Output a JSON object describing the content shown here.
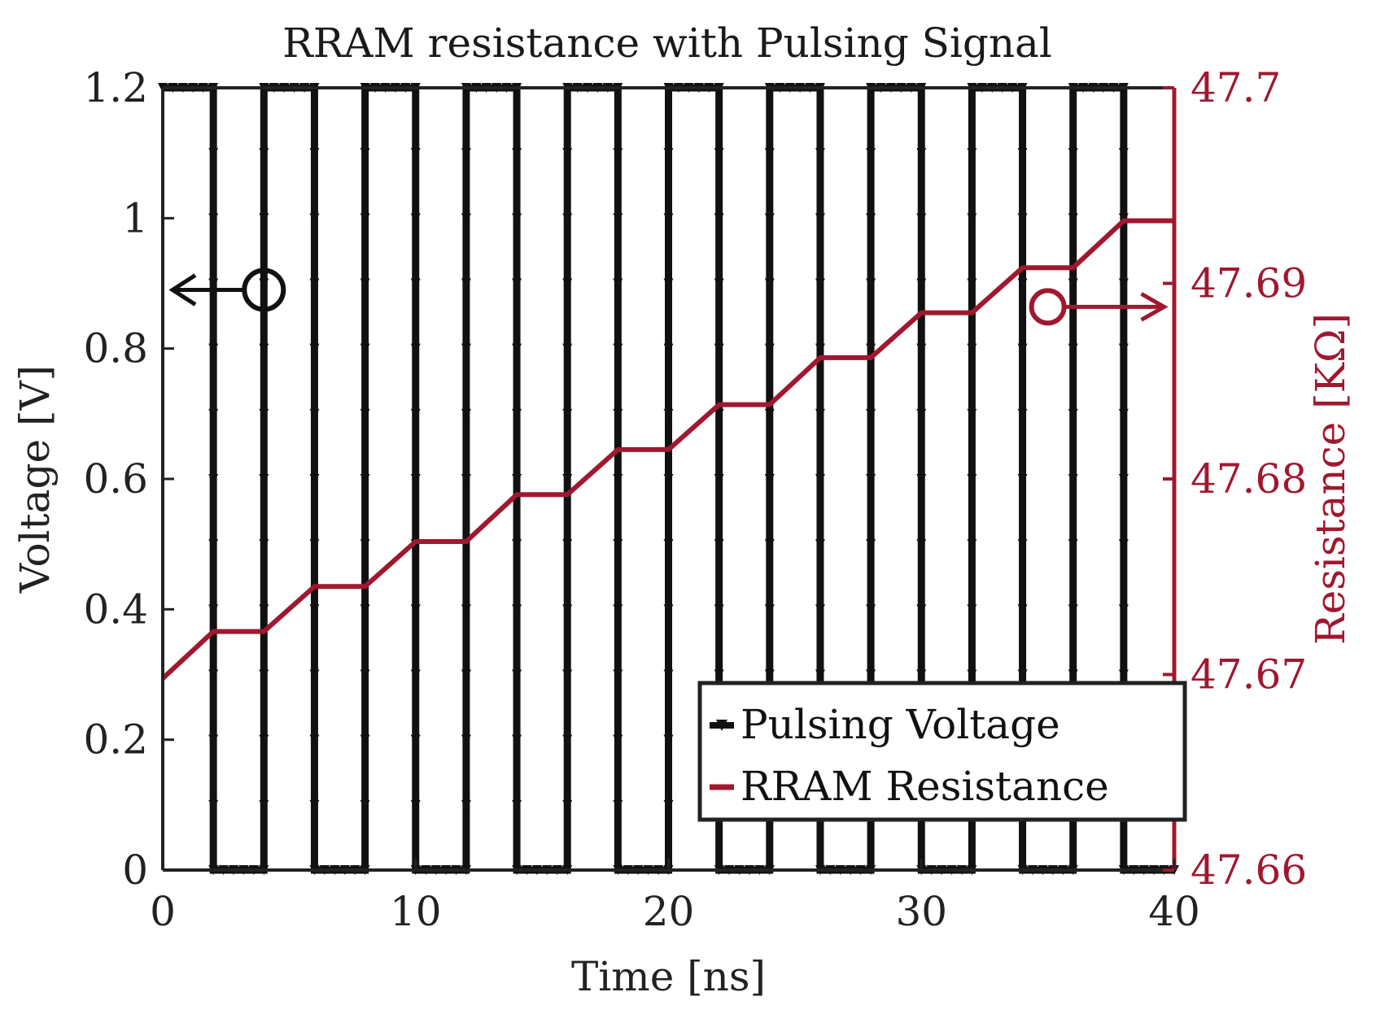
{
  "chart_data": {
    "type": "line",
    "title": "RRAM resistance with Pulsing Signal",
    "xlabel": "Time [ns]",
    "ylabel_left": "Voltage [V]",
    "ylabel_right": "Resistance [KΩ]",
    "xlim": [
      0,
      40
    ],
    "ylim_left": [
      0,
      1.2
    ],
    "ylim_right": [
      47.66,
      47.7
    ],
    "x_ticks": [
      "0",
      "10",
      "20",
      "30",
      "40"
    ],
    "y_ticks_left": [
      "0",
      "0.2",
      "0.4",
      "0.6",
      "0.8",
      "1",
      "1.2"
    ],
    "y_ticks_right": [
      "47.66",
      "47.67",
      "47.68",
      "47.69",
      "47.7"
    ],
    "grid": false,
    "legend_position": "bottom-right",
    "colors": {
      "voltage": "#111111",
      "resistance": "#a0182f"
    },
    "series": [
      {
        "name": "Pulsing Voltage",
        "axis": "left",
        "color": "#111111",
        "marker": "triangle-down",
        "x": [
          0,
          2,
          2,
          4,
          4,
          6,
          6,
          8,
          8,
          10,
          10,
          12,
          12,
          14,
          14,
          16,
          16,
          18,
          18,
          20,
          20,
          22,
          22,
          24,
          24,
          26,
          26,
          28,
          28,
          30,
          30,
          32,
          32,
          34,
          34,
          36,
          36,
          38,
          38,
          40
        ],
        "y": [
          1.2,
          1.2,
          0,
          0,
          1.2,
          1.2,
          0,
          0,
          1.2,
          1.2,
          0,
          0,
          1.2,
          1.2,
          0,
          0,
          1.2,
          1.2,
          0,
          0,
          1.2,
          1.2,
          0,
          0,
          1.2,
          1.2,
          0,
          0,
          1.2,
          1.2,
          0,
          0,
          1.2,
          1.2,
          0,
          0,
          1.2,
          1.2,
          0,
          0
        ]
      },
      {
        "name": "RRAM Resistance",
        "axis": "right",
        "color": "#a0182f",
        "x": [
          0,
          2,
          4,
          6,
          8,
          10,
          12,
          14,
          16,
          18,
          20,
          22,
          24,
          26,
          28,
          30,
          32,
          34,
          36,
          38,
          40
        ],
        "y": [
          47.6698,
          47.6722,
          47.6722,
          47.6745,
          47.6745,
          47.6768,
          47.6768,
          47.6792,
          47.6792,
          47.6815,
          47.6815,
          47.6838,
          47.6838,
          47.6862,
          47.6862,
          47.6885,
          47.6885,
          47.6908,
          47.6908,
          47.6932,
          47.6932
        ]
      }
    ],
    "annotations": [
      {
        "type": "circle-arrow",
        "target_axis": "left",
        "direction": "left"
      },
      {
        "type": "circle-arrow",
        "target_axis": "right",
        "direction": "right"
      }
    ]
  }
}
